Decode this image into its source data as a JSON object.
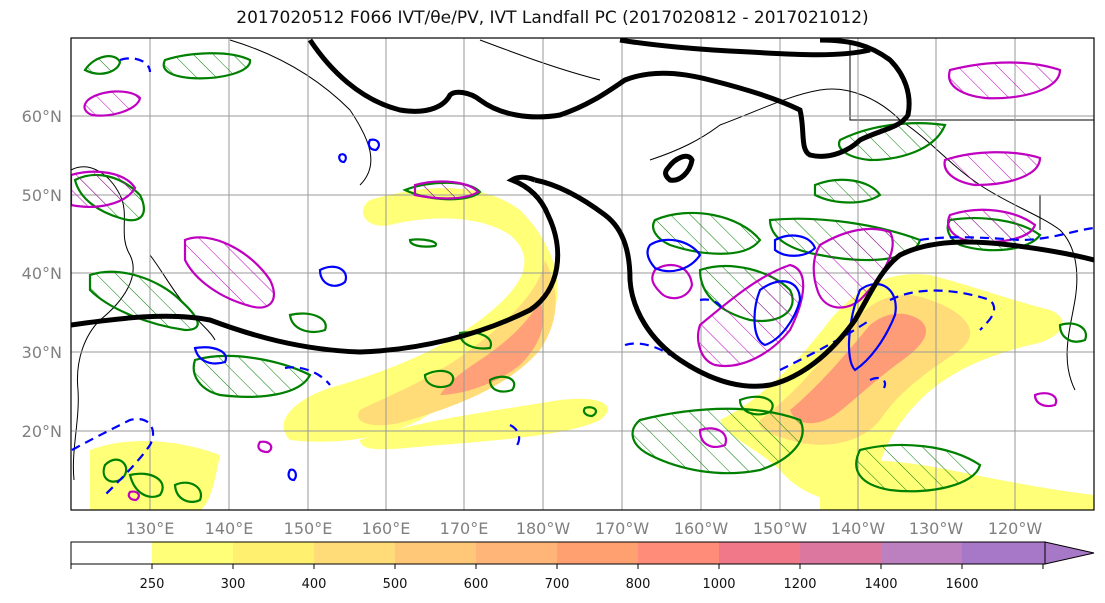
{
  "title": "2017020512 F066 IVT/θe/PV, IVT Landfall PC (2017020812 - 2017021012)",
  "map": {
    "lat_labels": [
      "60°N",
      "50°N",
      "40°N",
      "30°N",
      "20°N"
    ],
    "lon_labels": [
      "130°E",
      "140°E",
      "150°E",
      "160°E",
      "170°E",
      "180°W",
      "170°W",
      "160°W",
      "150°W",
      "140°W",
      "130°W",
      "120°W"
    ]
  },
  "colorbar": {
    "ticks": [
      "250",
      "300",
      "400",
      "500",
      "600",
      "700",
      "800",
      "1000",
      "1200",
      "1400",
      "1600"
    ],
    "colors": [
      "#ffffff",
      "#ffff78",
      "#fff070",
      "#ffdc78",
      "#ffc878",
      "#ffb478",
      "#ffa070",
      "#ff8c78",
      "#f07888",
      "#dc78a0",
      "#bc80c0",
      "#a878c8"
    ]
  },
  "colors": {
    "ivt_contour": "#000000",
    "theta_e_contour": "#008000",
    "pv_contour_pos": "#c000c0",
    "pv_contour_neg": "#0000ff"
  }
}
